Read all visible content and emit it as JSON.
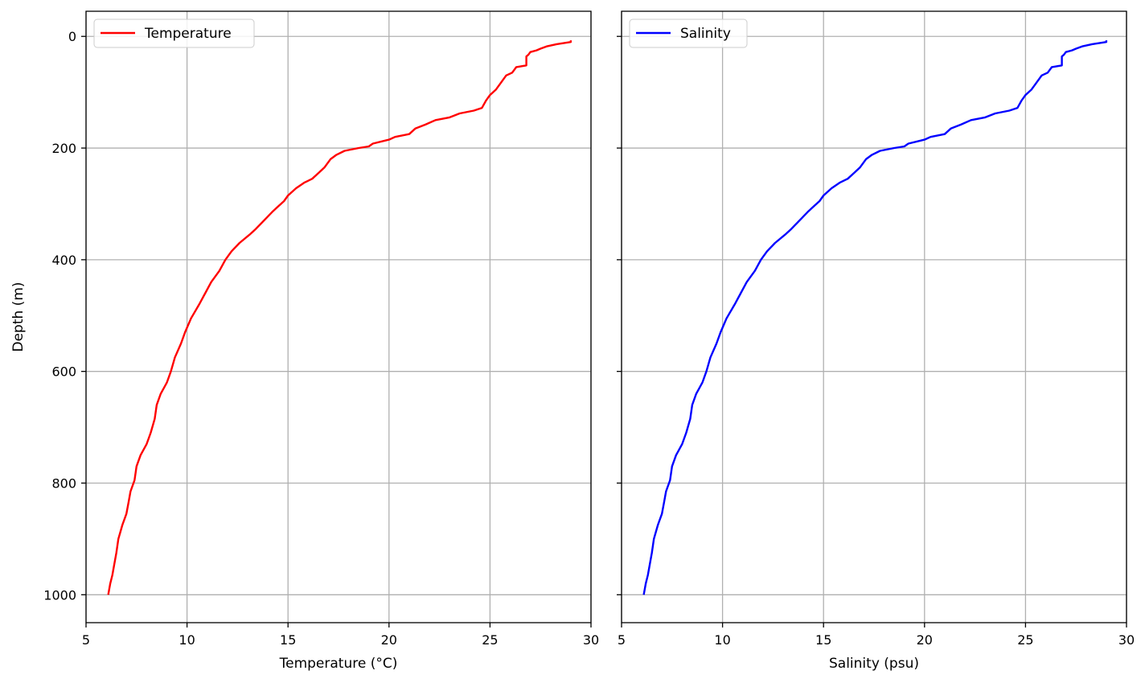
{
  "chart_data": [
    {
      "type": "line",
      "title": "",
      "xlabel": "Temperature (°C)",
      "ylabel": "Depth (m)",
      "xlim": [
        5,
        30
      ],
      "ylim": [
        1050,
        -45
      ],
      "xticks": [
        "5",
        "10",
        "15",
        "20",
        "25",
        "30"
      ],
      "yticks": [
        "0",
        "200",
        "400",
        "600",
        "800",
        "1000"
      ],
      "grid": true,
      "legend_position": "top-left",
      "series": [
        {
          "name": "Temperature",
          "color": "#ff0000",
          "points": [
            [
              29.0,
              7
            ],
            [
              29.0,
              10
            ],
            [
              28.3,
              14
            ],
            [
              27.8,
              18
            ],
            [
              27.5,
              22
            ],
            [
              27.3,
              25
            ],
            [
              27.0,
              28
            ],
            [
              26.9,
              33
            ],
            [
              26.8,
              36
            ],
            [
              26.8,
              40
            ],
            [
              26.8,
              52
            ],
            [
              26.3,
              55
            ],
            [
              26.1,
              65
            ],
            [
              25.8,
              70
            ],
            [
              25.5,
              85
            ],
            [
              25.3,
              95
            ],
            [
              25.0,
              105
            ],
            [
              24.8,
              115
            ],
            [
              24.6,
              128
            ],
            [
              24.2,
              133
            ],
            [
              23.5,
              138
            ],
            [
              23.0,
              145
            ],
            [
              22.3,
              150
            ],
            [
              21.8,
              158
            ],
            [
              21.3,
              165
            ],
            [
              21.0,
              175
            ],
            [
              20.3,
              180
            ],
            [
              20.0,
              185
            ],
            [
              19.2,
              192
            ],
            [
              19.0,
              197
            ],
            [
              18.5,
              200
            ],
            [
              17.8,
              205
            ],
            [
              17.4,
              212
            ],
            [
              17.1,
              220
            ],
            [
              16.8,
              235
            ],
            [
              16.5,
              245
            ],
            [
              16.2,
              255
            ],
            [
              15.8,
              262
            ],
            [
              15.4,
              272
            ],
            [
              15.0,
              285
            ],
            [
              14.8,
              295
            ],
            [
              14.5,
              305
            ],
            [
              14.2,
              315
            ],
            [
              13.8,
              330
            ],
            [
              13.4,
              345
            ],
            [
              13.1,
              355
            ],
            [
              12.6,
              370
            ],
            [
              12.2,
              385
            ],
            [
              11.9,
              400
            ],
            [
              11.6,
              420
            ],
            [
              11.2,
              440
            ],
            [
              10.9,
              460
            ],
            [
              10.6,
              480
            ],
            [
              10.2,
              505
            ],
            [
              9.9,
              530
            ],
            [
              9.7,
              550
            ],
            [
              9.4,
              575
            ],
            [
              9.2,
              600
            ],
            [
              9.0,
              620
            ],
            [
              8.7,
              640
            ],
            [
              8.5,
              660
            ],
            [
              8.4,
              685
            ],
            [
              8.2,
              710
            ],
            [
              8.0,
              730
            ],
            [
              7.7,
              750
            ],
            [
              7.5,
              770
            ],
            [
              7.4,
              795
            ],
            [
              7.2,
              815
            ],
            [
              7.1,
              835
            ],
            [
              7.0,
              855
            ],
            [
              6.8,
              875
            ],
            [
              6.6,
              900
            ],
            [
              6.5,
              925
            ],
            [
              6.4,
              945
            ],
            [
              6.3,
              965
            ],
            [
              6.2,
              980
            ],
            [
              6.1,
              1000
            ]
          ]
        }
      ]
    },
    {
      "type": "line",
      "title": "",
      "xlabel": "Salinity (psu)",
      "ylabel": "",
      "xlim": [
        5,
        30
      ],
      "ylim": [
        1050,
        -45
      ],
      "xticks": [
        "5",
        "10",
        "15",
        "20",
        "25",
        "30"
      ],
      "yticks": [],
      "grid": true,
      "legend_position": "top-left",
      "series": [
        {
          "name": "Salinity",
          "color": "#0000ff",
          "points": [
            [
              29.0,
              7
            ],
            [
              29.0,
              10
            ],
            [
              28.3,
              14
            ],
            [
              27.8,
              18
            ],
            [
              27.5,
              22
            ],
            [
              27.3,
              25
            ],
            [
              27.0,
              28
            ],
            [
              26.9,
              33
            ],
            [
              26.8,
              36
            ],
            [
              26.8,
              40
            ],
            [
              26.8,
              52
            ],
            [
              26.3,
              55
            ],
            [
              26.1,
              65
            ],
            [
              25.8,
              70
            ],
            [
              25.5,
              85
            ],
            [
              25.3,
              95
            ],
            [
              25.0,
              105
            ],
            [
              24.8,
              115
            ],
            [
              24.6,
              128
            ],
            [
              24.2,
              133
            ],
            [
              23.5,
              138
            ],
            [
              23.0,
              145
            ],
            [
              22.3,
              150
            ],
            [
              21.8,
              158
            ],
            [
              21.3,
              165
            ],
            [
              21.0,
              175
            ],
            [
              20.3,
              180
            ],
            [
              20.0,
              185
            ],
            [
              19.2,
              192
            ],
            [
              19.0,
              197
            ],
            [
              18.5,
              200
            ],
            [
              17.8,
              205
            ],
            [
              17.4,
              212
            ],
            [
              17.1,
              220
            ],
            [
              16.8,
              235
            ],
            [
              16.5,
              245
            ],
            [
              16.2,
              255
            ],
            [
              15.8,
              262
            ],
            [
              15.4,
              272
            ],
            [
              15.0,
              285
            ],
            [
              14.8,
              295
            ],
            [
              14.5,
              305
            ],
            [
              14.2,
              315
            ],
            [
              13.8,
              330
            ],
            [
              13.4,
              345
            ],
            [
              13.1,
              355
            ],
            [
              12.6,
              370
            ],
            [
              12.2,
              385
            ],
            [
              11.9,
              400
            ],
            [
              11.6,
              420
            ],
            [
              11.2,
              440
            ],
            [
              10.9,
              460
            ],
            [
              10.6,
              480
            ],
            [
              10.2,
              505
            ],
            [
              9.9,
              530
            ],
            [
              9.7,
              550
            ],
            [
              9.4,
              575
            ],
            [
              9.2,
              600
            ],
            [
              9.0,
              620
            ],
            [
              8.7,
              640
            ],
            [
              8.5,
              660
            ],
            [
              8.4,
              685
            ],
            [
              8.2,
              710
            ],
            [
              8.0,
              730
            ],
            [
              7.7,
              750
            ],
            [
              7.5,
              770
            ],
            [
              7.4,
              795
            ],
            [
              7.2,
              815
            ],
            [
              7.1,
              835
            ],
            [
              7.0,
              855
            ],
            [
              6.8,
              875
            ],
            [
              6.6,
              900
            ],
            [
              6.5,
              925
            ],
            [
              6.4,
              945
            ],
            [
              6.3,
              965
            ],
            [
              6.2,
              980
            ],
            [
              6.1,
              1000
            ]
          ]
        }
      ]
    }
  ]
}
